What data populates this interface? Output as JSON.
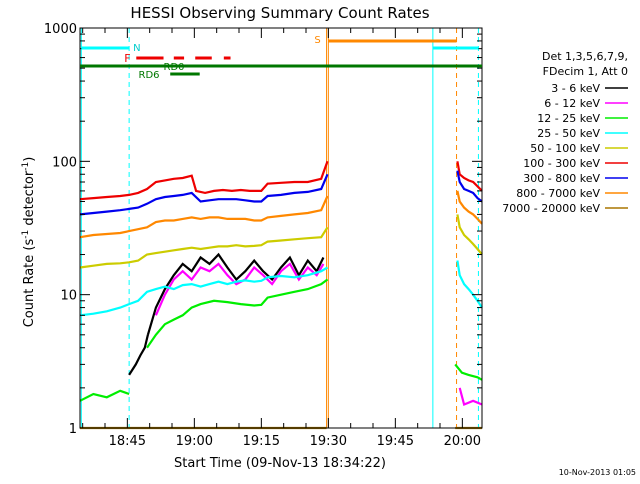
{
  "chart_data": {
    "type": "line",
    "title": "HESSI Observing Summary Count Rates",
    "xlabel": "Start Time (09-Nov-13 18:34:22)",
    "ylabel_main": "Count Rate (s",
    "ylabel_sup": "-1",
    "ylabel_rest": " detector",
    "ylabel_sup2": "-1",
    "ylabel_end": ")",
    "y_scale": "log",
    "ylim": [
      1,
      1000
    ],
    "xlim_minutes": [
      0,
      90
    ],
    "x_ticks": [
      {
        "label": "18:45",
        "t": 10.6
      },
      {
        "label": "19:00",
        "t": 25.6
      },
      {
        "label": "19:15",
        "t": 40.6
      },
      {
        "label": "19:30",
        "t": 55.6
      },
      {
        "label": "19:45",
        "t": 70.6
      },
      {
        "label": "20:00",
        "t": 85.6
      }
    ],
    "y_ticks": [
      {
        "label": "1",
        "v": 1
      },
      {
        "label": "10",
        "v": 10
      },
      {
        "label": "100",
        "v": 100
      },
      {
        "label": "1000",
        "v": 1000
      }
    ],
    "legend": {
      "placement": "right",
      "header1": "Det 1,3,5,6,7,9,",
      "header2": "FDecim 1, Att 0",
      "entries": [
        {
          "label": "3 - 6 keV",
          "color": "#000000"
        },
        {
          "label": "6 - 12 keV",
          "color": "#ff00ff"
        },
        {
          "label": "12 - 25 keV",
          "color": "#00ee00"
        },
        {
          "label": "25 - 50 keV",
          "color": "#00ffff"
        },
        {
          "label": "50 - 100 keV",
          "color": "#cccc00"
        },
        {
          "label": "100 - 300 keV",
          "color": "#ee0000"
        },
        {
          "label": "300 - 800 keV",
          "color": "#0000ee"
        },
        {
          "label": "800 - 7000 keV",
          "color": "#ff8800"
        },
        {
          "label": "7000 - 20000 keV",
          "color": "#aa7700"
        }
      ]
    },
    "flag_labels": {
      "n": "N",
      "f": "F",
      "rd0": "RD0",
      "rd6": "RD6",
      "s": "S"
    },
    "series": [
      {
        "name": "3 - 6 keV",
        "color": "#000000",
        "segments": [
          [
            [
              11.0,
              2.5
            ],
            [
              12.5,
              3.0
            ],
            [
              13.5,
              3.5
            ],
            [
              14.5,
              4.0
            ],
            [
              15.2,
              5.0
            ]
          ],
          [
            [
              15.2,
              5.0
            ],
            [
              17,
              8
            ],
            [
              19,
              11
            ],
            [
              21,
              14
            ],
            [
              23,
              17
            ],
            [
              25,
              15
            ],
            [
              27,
              19
            ],
            [
              29,
              17
            ],
            [
              31,
              20
            ],
            [
              33,
              16
            ],
            [
              35,
              13
            ],
            [
              37,
              15
            ],
            [
              39,
              18
            ],
            [
              41,
              15
            ],
            [
              43,
              13
            ],
            [
              45,
              16
            ],
            [
              47,
              19
            ],
            [
              49,
              14
            ],
            [
              51,
              18
            ],
            [
              53,
              15
            ],
            [
              54.5,
              19
            ]
          ]
        ]
      },
      {
        "name": "6 - 12 keV",
        "color": "#ff00ff",
        "segments": [
          [
            [
              17,
              7
            ],
            [
              19,
              10
            ],
            [
              21,
              13
            ],
            [
              23,
              15
            ],
            [
              25,
              13
            ],
            [
              27,
              16
            ],
            [
              29,
              15
            ],
            [
              31,
              17
            ],
            [
              33,
              14
            ],
            [
              35,
              12
            ],
            [
              37,
              13
            ],
            [
              39,
              16
            ],
            [
              41,
              14
            ],
            [
              43,
              12
            ],
            [
              45,
              15
            ],
            [
              47,
              17
            ],
            [
              49,
              13
            ],
            [
              51,
              16
            ],
            [
              53,
              14
            ],
            [
              54.5,
              17
            ]
          ],
          [
            [
              85,
              2
            ],
            [
              86,
              1.5
            ],
            [
              88,
              1.6
            ],
            [
              90,
              1.5
            ]
          ]
        ]
      },
      {
        "name": "12 - 25 keV",
        "color": "#00ee00",
        "segments": [
          [
            [
              0,
              1.6
            ],
            [
              3,
              1.8
            ],
            [
              6,
              1.7
            ],
            [
              9,
              1.9
            ],
            [
              11,
              1.8
            ]
          ],
          [
            [
              15,
              4
            ],
            [
              17,
              5
            ],
            [
              19,
              6
            ],
            [
              21,
              6.5
            ],
            [
              23,
              7
            ],
            [
              25,
              8
            ],
            [
              27,
              8.5
            ],
            [
              30,
              9
            ],
            [
              33,
              8.8
            ],
            [
              36,
              8.5
            ],
            [
              39,
              8.3
            ],
            [
              40.6,
              8.4
            ],
            [
              42,
              9.5
            ],
            [
              45,
              10
            ],
            [
              48,
              10.5
            ],
            [
              51,
              11
            ],
            [
              54,
              12
            ],
            [
              55.4,
              13
            ]
          ],
          [
            [
              84,
              3.0
            ],
            [
              85.5,
              2.6
            ],
            [
              87,
              2.5
            ],
            [
              89,
              2.4
            ],
            [
              90,
              2.3
            ]
          ]
        ]
      },
      {
        "name": "25 - 50 keV",
        "color": "#00ffff",
        "segments": [
          [
            [
              0,
              7.0
            ],
            [
              3,
              7.2
            ],
            [
              6,
              7.5
            ],
            [
              9,
              8.0
            ],
            [
              11,
              8.5
            ],
            [
              13,
              9.0
            ],
            [
              15,
              10.5
            ],
            [
              17,
              11
            ],
            [
              19,
              11.5
            ],
            [
              21,
              11
            ],
            [
              23,
              11.8
            ],
            [
              25,
              12
            ],
            [
              27,
              11.5
            ],
            [
              29,
              12
            ],
            [
              31,
              12.5
            ],
            [
              33,
              12
            ],
            [
              35,
              12.5
            ],
            [
              37,
              12.8
            ],
            [
              39,
              12.5
            ],
            [
              40.6,
              12.7
            ],
            [
              42,
              13.5
            ],
            [
              45,
              13.8
            ],
            [
              48,
              13.5
            ],
            [
              51,
              14
            ],
            [
              54,
              15
            ],
            [
              55.4,
              16
            ]
          ],
          [
            [
              84.5,
              18
            ],
            [
              85,
              14
            ],
            [
              86,
              12
            ],
            [
              87,
              11
            ],
            [
              88,
              10
            ],
            [
              89,
              9
            ],
            [
              90,
              8
            ]
          ]
        ]
      },
      {
        "name": "50 - 100 keV",
        "color": "#cccc00",
        "segments": [
          [
            [
              0,
              16
            ],
            [
              3,
              16.5
            ],
            [
              6,
              17
            ],
            [
              9,
              17.2
            ],
            [
              11,
              17.5
            ],
            [
              13,
              18
            ],
            [
              15,
              20
            ],
            [
              17,
              20.5
            ],
            [
              19,
              21
            ],
            [
              21,
              21.5
            ],
            [
              23,
              22
            ],
            [
              25,
              22.5
            ],
            [
              27,
              22
            ],
            [
              29,
              22.5
            ],
            [
              31,
              23
            ],
            [
              33,
              23
            ],
            [
              35,
              23.5
            ],
            [
              37,
              23
            ],
            [
              39,
              23.2
            ],
            [
              40.6,
              23.5
            ],
            [
              42,
              25
            ],
            [
              45,
              25.5
            ],
            [
              48,
              26
            ],
            [
              51,
              26.5
            ],
            [
              54,
              27
            ],
            [
              55.4,
              32
            ]
          ],
          [
            [
              84.5,
              40
            ],
            [
              85,
              32
            ],
            [
              86,
              28
            ],
            [
              87,
              26
            ],
            [
              88,
              24
            ],
            [
              89,
              22
            ],
            [
              90,
              20
            ]
          ]
        ]
      },
      {
        "name": "100 - 300 keV",
        "color": "#ee0000",
        "segments": [
          [
            [
              0,
              52
            ],
            [
              3,
              53
            ],
            [
              6,
              54
            ],
            [
              9,
              55
            ],
            [
              11,
              56
            ],
            [
              13,
              58
            ],
            [
              15,
              62
            ],
            [
              17,
              70
            ],
            [
              19,
              72
            ],
            [
              21,
              74
            ],
            [
              23,
              75
            ],
            [
              25,
              78
            ],
            [
              26,
              60
            ],
            [
              28,
              58
            ],
            [
              30,
              60
            ],
            [
              32,
              61
            ],
            [
              34,
              60
            ],
            [
              36,
              61
            ],
            [
              38,
              60
            ],
            [
              40.6,
              60
            ],
            [
              42,
              68
            ],
            [
              45,
              69
            ],
            [
              48,
              70
            ],
            [
              51,
              70
            ],
            [
              54,
              74
            ],
            [
              55.4,
              100
            ]
          ],
          [
            [
              84.5,
              100
            ],
            [
              85,
              80
            ],
            [
              86,
              75
            ],
            [
              87,
              72
            ],
            [
              88,
              70
            ],
            [
              89,
              65
            ],
            [
              90,
              60
            ]
          ]
        ]
      },
      {
        "name": "300 - 800 keV",
        "color": "#0000ee",
        "segments": [
          [
            [
              0,
              40
            ],
            [
              3,
              41
            ],
            [
              6,
              42
            ],
            [
              9,
              43
            ],
            [
              11,
              44
            ],
            [
              13,
              45
            ],
            [
              15,
              48
            ],
            [
              17,
              52
            ],
            [
              19,
              54
            ],
            [
              21,
              55
            ],
            [
              23,
              56
            ],
            [
              25,
              58
            ],
            [
              27,
              50
            ],
            [
              29,
              51
            ],
            [
              31,
              52
            ],
            [
              33,
              52
            ],
            [
              35,
              52
            ],
            [
              37,
              51
            ],
            [
              39,
              50
            ],
            [
              40.6,
              50
            ],
            [
              42,
              55
            ],
            [
              45,
              56
            ],
            [
              48,
              58
            ],
            [
              51,
              59
            ],
            [
              54,
              62
            ],
            [
              55.4,
              80
            ]
          ],
          [
            [
              84.5,
              85
            ],
            [
              85,
              70
            ],
            [
              86,
              62
            ],
            [
              87,
              60
            ],
            [
              88,
              58
            ],
            [
              89,
              53
            ],
            [
              90,
              50
            ]
          ]
        ]
      },
      {
        "name": "800 - 7000 keV",
        "color": "#ff8800",
        "segments": [
          [
            [
              0,
              27
            ],
            [
              3,
              28
            ],
            [
              6,
              28.5
            ],
            [
              9,
              29
            ],
            [
              11,
              30
            ],
            [
              13,
              31
            ],
            [
              15,
              32
            ],
            [
              17,
              35
            ],
            [
              19,
              36
            ],
            [
              21,
              36
            ],
            [
              23,
              37
            ],
            [
              25,
              38
            ],
            [
              27,
              37
            ],
            [
              29,
              38
            ],
            [
              31,
              38
            ],
            [
              33,
              37
            ],
            [
              35,
              37
            ],
            [
              37,
              37
            ],
            [
              39,
              36
            ],
            [
              40.6,
              36
            ],
            [
              42,
              38
            ],
            [
              45,
              39
            ],
            [
              48,
              40
            ],
            [
              51,
              41
            ],
            [
              54,
              43
            ],
            [
              55.4,
              55
            ]
          ],
          [
            [
              84.5,
              60
            ],
            [
              85,
              50
            ],
            [
              86,
              45
            ],
            [
              87,
              42
            ],
            [
              88,
              40
            ],
            [
              89,
              37
            ],
            [
              90,
              34
            ]
          ]
        ]
      },
      {
        "name": "7000 - 20000 keV",
        "color": "#aa7700",
        "segments": [
          [
            [
              0,
              1
            ],
            [
              55.2,
              1
            ]
          ],
          [
            [
              84,
              1
            ],
            [
              90,
              1
            ]
          ]
        ]
      }
    ]
  },
  "date_stamp": "10-Nov-2013 01:05"
}
